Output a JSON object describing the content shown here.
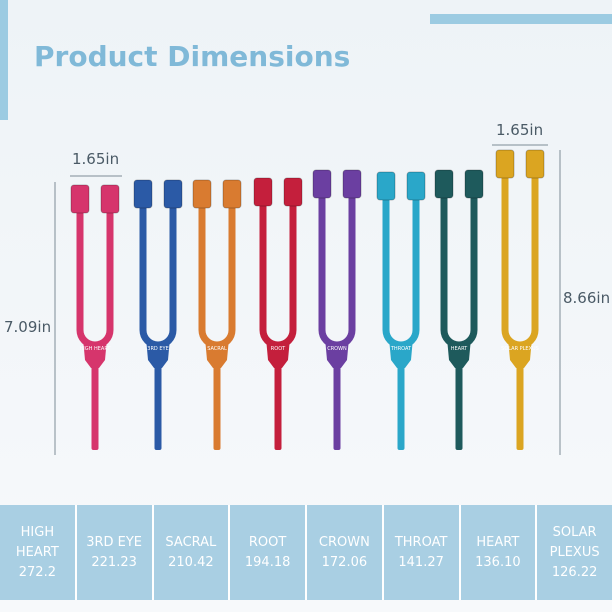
{
  "header": {
    "title": "Product Dimensions"
  },
  "dimensions": {
    "top_left_width": "1.65in",
    "top_right_width": "1.65in",
    "left_height": "7.09in",
    "right_height": "8.66in"
  },
  "table": {
    "rows": [
      [
        "HIGH HEART",
        "272.2"
      ],
      [
        "3RD EYE",
        "221.23"
      ],
      [
        "SACRAL",
        "210.42"
      ],
      [
        "ROOT",
        "194.18"
      ],
      [
        "CROWN",
        "172.06"
      ],
      [
        "THROAT",
        "141.27"
      ],
      [
        "HEART",
        "136.10"
      ],
      [
        "SOLAR PLEXUS",
        "126.22"
      ]
    ]
  }
}
